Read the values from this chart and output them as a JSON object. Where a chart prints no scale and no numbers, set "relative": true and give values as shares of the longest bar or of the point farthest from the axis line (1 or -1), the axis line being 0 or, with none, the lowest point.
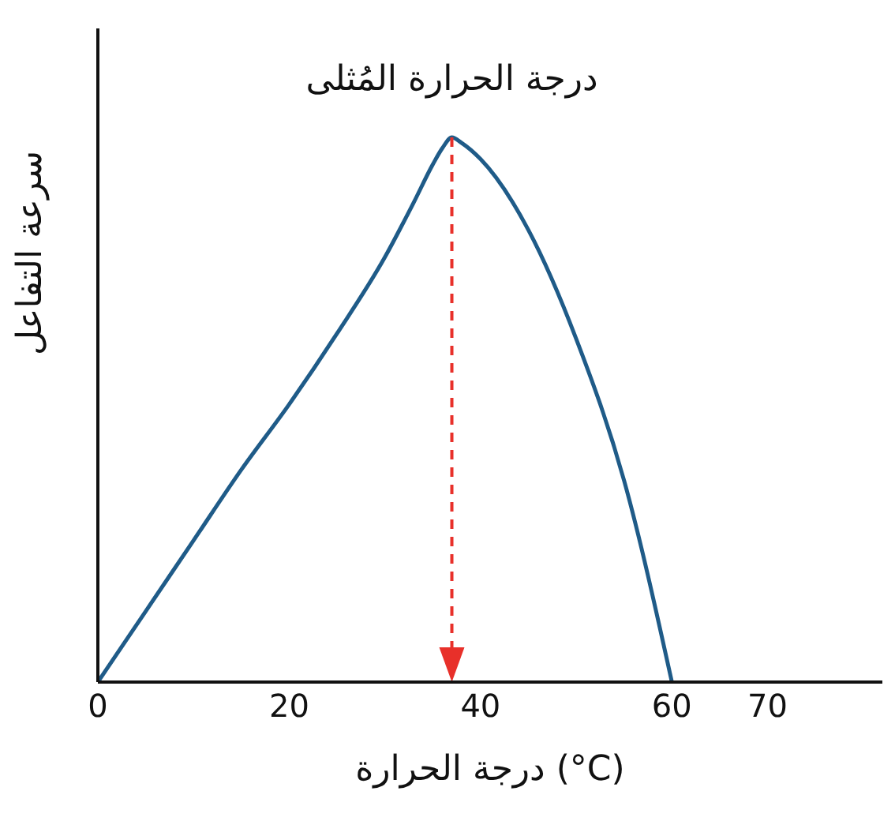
{
  "chart_data": {
    "type": "line",
    "relative": true,
    "xlabel": "درجة الحرارة (°C)",
    "ylabel": "سرعة التفاعل",
    "x": [
      0,
      5,
      10,
      15,
      20,
      25,
      30,
      33,
      35,
      36,
      37,
      38,
      40,
      45,
      50,
      55,
      60
    ],
    "series": [
      {
        "color": "#1f5b88",
        "values": [
          0,
          0.13,
          0.26,
          0.39,
          0.51,
          0.64,
          0.78,
          0.88,
          0.95,
          0.98,
          1,
          0.99,
          0.96,
          0.83,
          0.63,
          0.37,
          0
        ]
      }
    ],
    "xlim": [
      0,
      82
    ],
    "xticks": [
      0,
      20,
      40,
      60,
      70
    ],
    "marker": "none",
    "line_style": "solid",
    "ref_lines": [
      {
        "axis": "x",
        "value": 37,
        "color": "#e8302a",
        "line_style": "dashed"
      }
    ],
    "annotations": [
      {
        "text": "درجة الحرارة المُثلى",
        "x": 37,
        "y": 1
      }
    ]
  }
}
